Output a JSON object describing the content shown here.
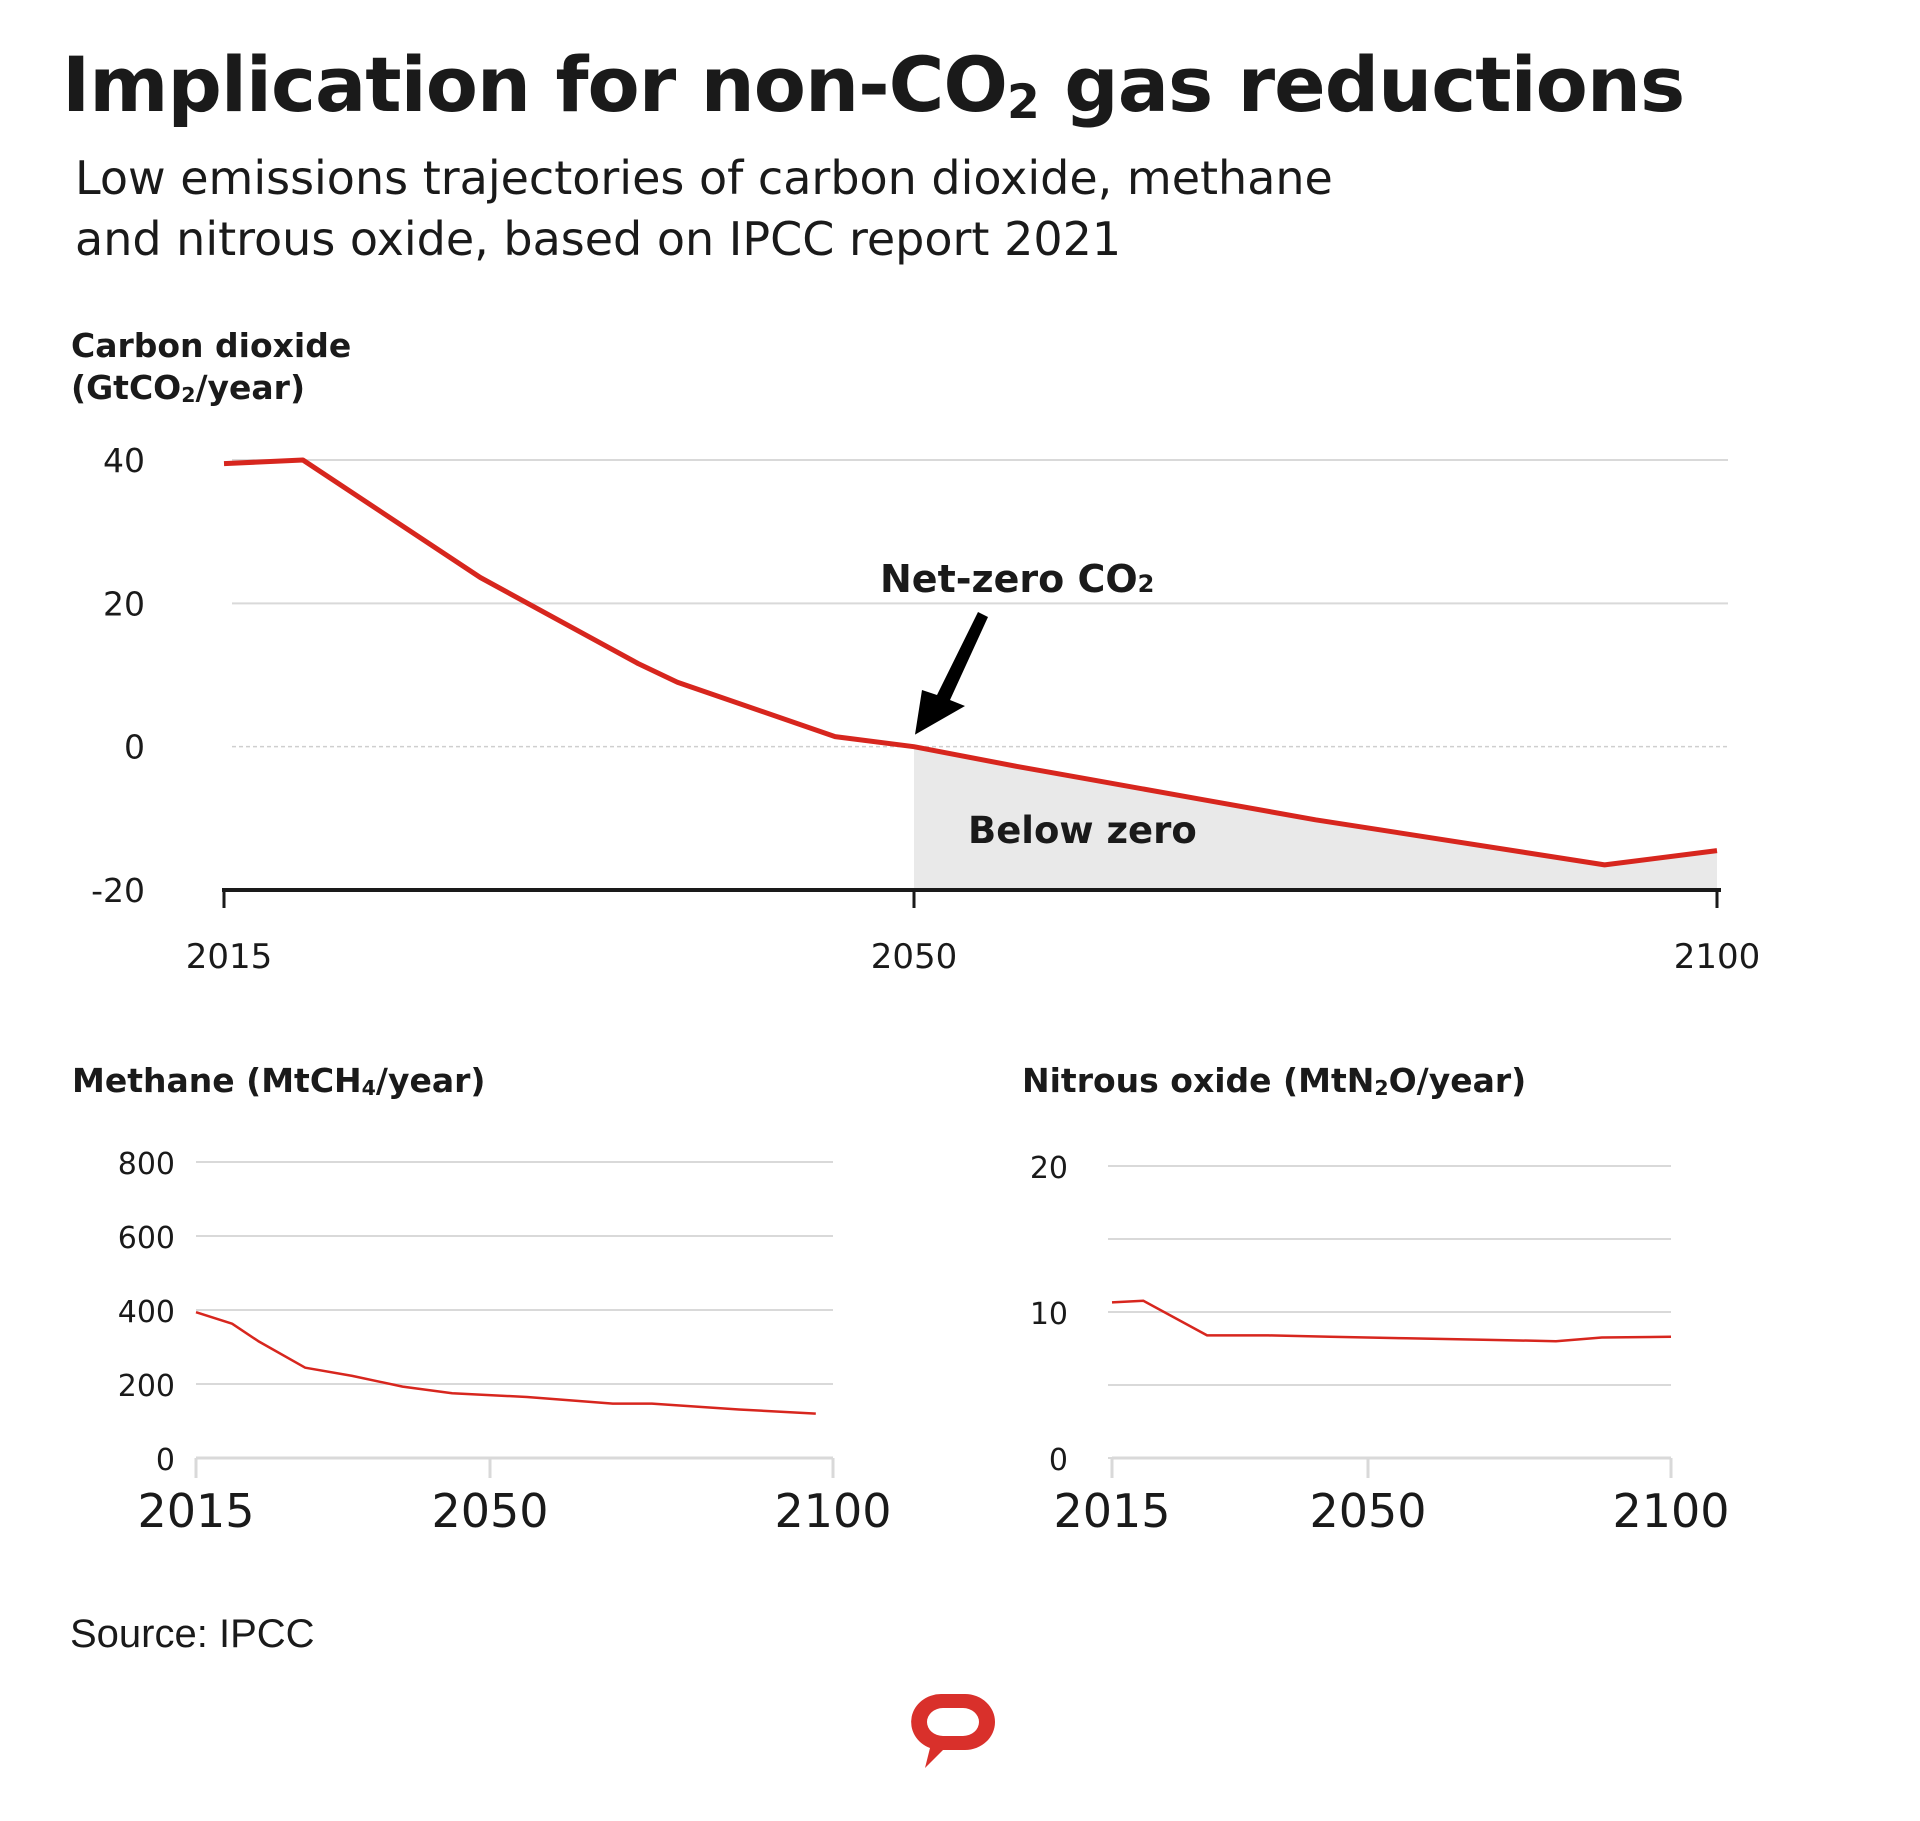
{
  "header": {
    "title_main": "Implication for non-CO",
    "title_sub": "2",
    "title_end": " gas reductions",
    "subtitle_line1": "Low emissions trajectories of carbon dioxide, methane",
    "subtitle_line2": "and nitrous oxide, based on IPCC report 2021"
  },
  "footer": {
    "source": "Source: IPCC",
    "logo_icon": "speech-bubble-logo-icon",
    "logo_color": "#d9302b"
  },
  "colors": {
    "line": "#d7261e",
    "grid": "#d9d9d9",
    "below_zero_fill": "#e9e9e9",
    "axis": "#1a1a1a",
    "text": "#1a1a1a"
  },
  "chart_data": [
    {
      "id": "co2",
      "type": "area",
      "title_line1": "Carbon dioxide",
      "title_line2_a": "(GtCO",
      "title_line2_sub": "2",
      "title_line2_b": "/year)",
      "xlabel": "",
      "ylabel": "GtCO2/year",
      "x_ticks": [
        2015,
        2050,
        2100
      ],
      "x_tick_labels": [
        "2015",
        "2050",
        "2100"
      ],
      "y_ticks": [
        40,
        20,
        0,
        -20
      ],
      "y_tick_labels": [
        "40",
        "20",
        "0",
        "-20"
      ],
      "ylim": [
        -20,
        40
      ],
      "xlim": [
        2015,
        2100
      ],
      "grid": true,
      "series": [
        {
          "name": "Carbon dioxide",
          "x": [
            2015,
            2019,
            2028,
            2036,
            2038,
            2046,
            2050,
            2056.5,
            2061,
            2068,
            2075,
            2081,
            2093,
            2100
          ],
          "y": [
            39.5,
            40,
            23.6,
            11.6,
            9,
            1.4,
            0,
            -2.8,
            -4.6,
            -7.4,
            -10.2,
            -12.3,
            -16.5,
            -14.5
          ]
        }
      ],
      "annotations": [
        {
          "text_main": "Net-zero CO",
          "text_sub": "2",
          "x": 2050,
          "y": 0,
          "type": "arrow"
        },
        {
          "text": "Below zero",
          "type": "shaded-region",
          "x_from": 2050,
          "x_to": 2100
        }
      ]
    },
    {
      "id": "methane",
      "type": "line",
      "title_a": "Methane (MtCH",
      "title_sub": "4",
      "title_b": "/year)",
      "xlabel": "",
      "ylabel": "MtCH4/year",
      "x_ticks": [
        2015,
        2050,
        2100
      ],
      "x_tick_labels": [
        "2015",
        "2050",
        "2100"
      ],
      "y_ticks": [
        800,
        600,
        400,
        200,
        0
      ],
      "y_tick_labels": [
        "800",
        "600",
        "400",
        "200",
        "0"
      ],
      "ylim": [
        0,
        800
      ],
      "xlim": [
        2015,
        2100
      ],
      "grid": true,
      "series": [
        {
          "name": "Methane",
          "x": [
            2015,
            2019.3,
            2022.4,
            2028,
            2033.6,
            2039.6,
            2045.5,
            2055.4,
            2067.9,
            2073.6,
            2086.3,
            2097.5
          ],
          "y": [
            394,
            363,
            316,
            244,
            222,
            193,
            175,
            165,
            147,
            147,
            131,
            120
          ]
        }
      ]
    },
    {
      "id": "n2o",
      "type": "line",
      "title_a": "Nitrous oxide (MtN",
      "title_sub": "2",
      "title_b": "O/year)",
      "xlabel": "",
      "ylabel": "MtN2O/year",
      "x_ticks": [
        2015,
        2050,
        2100
      ],
      "x_tick_labels": [
        "2015",
        "2050",
        "2100"
      ],
      "y_ticks": [
        20,
        15,
        10,
        5,
        0
      ],
      "y_tick_labels": [
        "20",
        "",
        "10",
        "",
        "0"
      ],
      "ylim": [
        0,
        20
      ],
      "xlim": [
        2015,
        2100
      ],
      "grid": true,
      "series": [
        {
          "name": "Nitrous oxide",
          "x": [
            2015,
            2019.3,
            2028,
            2036.4,
            2044.8,
            2056.3,
            2069,
            2081,
            2088.6,
            2100
          ],
          "y": [
            10.66,
            10.77,
            8.4,
            8.4,
            8.3,
            8.2,
            8.1,
            8.0,
            8.25,
            8.3
          ]
        }
      ]
    }
  ]
}
